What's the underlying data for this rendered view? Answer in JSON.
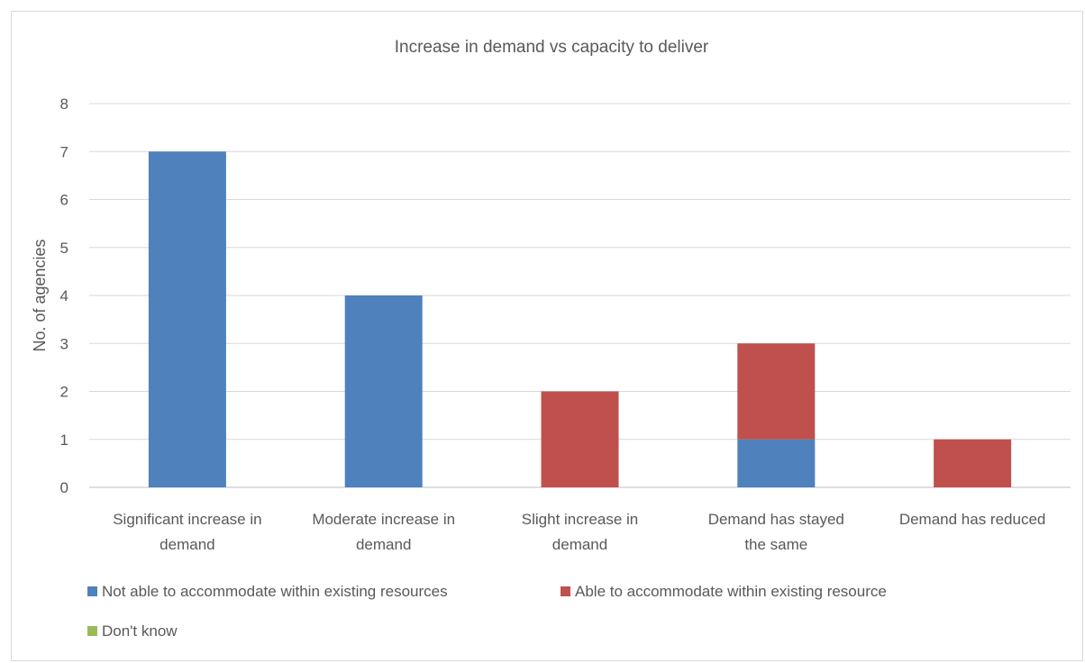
{
  "chart_data": {
    "type": "bar",
    "stacked": true,
    "title": "Increase in demand vs capacity to deliver",
    "xlabel": "",
    "ylabel": "No. of agencies",
    "ylim": [
      0,
      8
    ],
    "yticks": [
      0,
      1,
      2,
      3,
      4,
      5,
      6,
      7,
      8
    ],
    "grid": true,
    "legend_position": "bottom",
    "categories": [
      [
        "Significant increase in",
        "demand"
      ],
      [
        "Moderate increase in",
        "demand"
      ],
      [
        "Slight increase in",
        "demand"
      ],
      [
        "Demand has stayed",
        "the same"
      ],
      [
        "Demand has reduced"
      ]
    ],
    "series": [
      {
        "name": "Not able to accommodate within existing resources",
        "color": "#4f81bd",
        "values": [
          7,
          4,
          0,
          1,
          0
        ]
      },
      {
        "name": "Able to accommodate within existing resource",
        "color": "#c0504d",
        "values": [
          0,
          0,
          2,
          2,
          1
        ]
      },
      {
        "name": "Don't know",
        "color": "#9bbb59",
        "values": [
          0,
          0,
          0,
          0,
          0
        ]
      }
    ]
  }
}
